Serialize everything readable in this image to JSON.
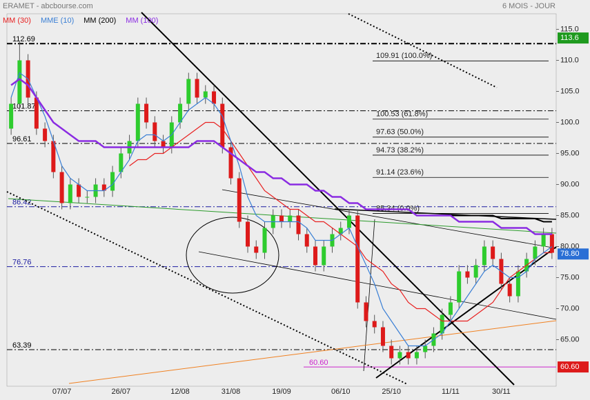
{
  "chart_data": {
    "type": "candlestick",
    "title": "ERAMET - abcbourse.com",
    "subtitle": "6 MOIS - JOUR",
    "categories": [
      null,
      null,
      null,
      null,
      null,
      null,
      "07/07",
      null,
      null,
      null,
      null,
      null,
      null,
      "26/07",
      null,
      null,
      null,
      null,
      null,
      null,
      "12/08",
      null,
      null,
      null,
      null,
      null,
      "31/08",
      null,
      null,
      null,
      null,
      null,
      "19/09",
      null,
      null,
      null,
      null,
      null,
      null,
      "06/10",
      null,
      null,
      null,
      null,
      null,
      "25/10",
      null,
      null,
      null,
      null,
      null,
      null,
      "11/11",
      null,
      null,
      null,
      null,
      null,
      "30/11",
      null,
      null,
      null,
      null,
      null,
      null
    ],
    "open": [
      99,
      103,
      110,
      104,
      99,
      97,
      92,
      87,
      90,
      88,
      88,
      90,
      89,
      92,
      95,
      97,
      103,
      100,
      97,
      96,
      100,
      103,
      107,
      104,
      105,
      103,
      96,
      91,
      84,
      80,
      79,
      83,
      85,
      84,
      85,
      82,
      80,
      77,
      80,
      82,
      83,
      85,
      71,
      68,
      67,
      64,
      62,
      63,
      62,
      63,
      64,
      66,
      69,
      71,
      76,
      75,
      77,
      80,
      78,
      74,
      72,
      76,
      78,
      80,
      82
    ],
    "high": [
      104,
      113,
      111,
      105,
      100,
      98,
      93,
      91,
      91,
      89,
      91,
      91,
      93,
      96,
      98,
      104,
      104,
      101,
      98,
      101,
      104,
      108,
      108,
      106,
      106,
      104,
      97,
      92,
      85,
      81,
      84,
      86,
      86,
      86,
      86,
      83,
      81,
      81,
      83,
      84,
      86,
      86,
      72,
      69,
      68,
      65,
      64,
      64,
      64,
      65,
      67,
      70,
      72,
      77,
      77,
      78,
      81,
      81,
      79,
      75,
      77,
      79,
      81,
      83,
      83
    ],
    "low": [
      98,
      102,
      103,
      98,
      96,
      91,
      86,
      86,
      87,
      87,
      87,
      88,
      88,
      91,
      94,
      96,
      99,
      96,
      95,
      95,
      99,
      102,
      103,
      103,
      102,
      95,
      90,
      83,
      79,
      78,
      78,
      82,
      83,
      83,
      81,
      79,
      76,
      76,
      79,
      81,
      82,
      70,
      67,
      66,
      63,
      61,
      61,
      61,
      61,
      62,
      63,
      65,
      68,
      70,
      74,
      74,
      76,
      77,
      73,
      71,
      71,
      75,
      77,
      79,
      78
    ],
    "close": [
      103,
      110,
      104,
      99,
      97,
      92,
      87,
      90,
      88,
      88,
      90,
      89,
      92,
      95,
      97,
      103,
      100,
      97,
      96,
      100,
      103,
      107,
      104,
      105,
      103,
      96,
      91,
      84,
      80,
      79,
      83,
      85,
      84,
      85,
      82,
      80,
      77,
      80,
      82,
      83,
      85,
      71,
      68,
      67,
      64,
      62,
      63,
      62,
      63,
      64,
      66,
      69,
      71,
      76,
      75,
      77,
      80,
      78,
      74,
      72,
      76,
      78,
      80,
      82,
      79
    ],
    "up_color": "#2ecc2e",
    "down_color": "#dd1a1a",
    "series": [
      {
        "name": "MM (30)",
        "color": "#e82020",
        "values": [
          null,
          null,
          null,
          null,
          null,
          null,
          null,
          null,
          null,
          null,
          null,
          null,
          null,
          null,
          93,
          94,
          94,
          95,
          95,
          96,
          97,
          98,
          99,
          100,
          100,
          99,
          97,
          95,
          93,
          91,
          89,
          88,
          87,
          86,
          86,
          85,
          84,
          84,
          83,
          82,
          81,
          80,
          78,
          77,
          76,
          74,
          73,
          71,
          70,
          70,
          69,
          68,
          68,
          68,
          68,
          69,
          70,
          71,
          73,
          75,
          76,
          77,
          78,
          79,
          79
        ]
      },
      {
        "name": "MME (10)",
        "color": "#3a7fd5",
        "values": [
          104,
          108,
          107,
          104,
          101,
          97,
          93,
          91,
          90,
          89,
          89,
          89,
          90,
          92,
          94,
          97,
          98,
          98,
          97,
          98,
          100,
          102,
          103,
          104,
          103,
          101,
          97,
          93,
          88,
          85,
          84,
          84,
          84,
          84,
          84,
          83,
          81,
          81,
          81,
          82,
          83,
          80,
          77,
          74,
          70,
          68,
          66,
          64,
          64,
          64,
          65,
          66,
          68,
          70,
          72,
          74,
          76,
          77,
          76,
          75,
          75,
          76,
          78,
          79,
          80
        ]
      },
      {
        "name": "MM (200)",
        "color": "#000000",
        "values": [
          null,
          null,
          null,
          null,
          null,
          null,
          null,
          null,
          null,
          null,
          null,
          null,
          null,
          null,
          null,
          null,
          null,
          null,
          null,
          null,
          null,
          null,
          null,
          null,
          null,
          null,
          null,
          null,
          null,
          null,
          null,
          null,
          null,
          null,
          null,
          null,
          null,
          null,
          null,
          null,
          null,
          null,
          null,
          null,
          null,
          null,
          null,
          null,
          null,
          null,
          85,
          85,
          85,
          85,
          85,
          85,
          85,
          85,
          84.5,
          84.5,
          84.5,
          84.5,
          84.5,
          84,
          84
        ]
      },
      {
        "name": "MM (100)",
        "color": "#8a2be2",
        "values": [
          106,
          107,
          106,
          104,
          102,
          100,
          99,
          98,
          97,
          97,
          97,
          96,
          96,
          96,
          96,
          96,
          96,
          96,
          96,
          96,
          96,
          96,
          97,
          97,
          97,
          96,
          95,
          94,
          93,
          92,
          92,
          91,
          91,
          90,
          90,
          90,
          89,
          89,
          88,
          88,
          87,
          87,
          86,
          86,
          86,
          86,
          86,
          86,
          85,
          85,
          85,
          85,
          85,
          84,
          84,
          84,
          84,
          84,
          83,
          83,
          83,
          83,
          82,
          82,
          82
        ]
      }
    ],
    "ylim": [
      57.5,
      117.5
    ],
    "yticks": [
      {
        "value": 65,
        "label": "65.00"
      },
      {
        "value": 70,
        "label": "70.00"
      },
      {
        "value": 75,
        "label": "75.00"
      },
      {
        "value": 80,
        "label": "80.00"
      },
      {
        "value": 85,
        "label": "85.00"
      },
      {
        "value": 90,
        "label": "90.00"
      },
      {
        "value": 95,
        "label": "95.00"
      },
      {
        "value": 100,
        "label": "100.0"
      },
      {
        "value": 105,
        "label": "105.0"
      },
      {
        "value": 110,
        "label": "110.0"
      },
      {
        "value": 115,
        "label": "115.0"
      }
    ],
    "levels": [
      {
        "value": 112.69,
        "label": "112.69",
        "color": "#000000"
      },
      {
        "value": 101.87,
        "label": "101.87",
        "color": "#000000"
      },
      {
        "value": 96.61,
        "label": "96.61",
        "color": "#000000"
      },
      {
        "value": 86.42,
        "label": "86.42",
        "color": "#1a1aa0"
      },
      {
        "value": 76.76,
        "label": "76.76",
        "color": "#1a1aa0"
      },
      {
        "value": 63.39,
        "label": "63.39",
        "color": "#000000"
      },
      {
        "value": 60.6,
        "label": "60.60",
        "color": "#cc22cc"
      }
    ],
    "fibonacci": [
      {
        "value": 109.91,
        "label": "109.91  (100.0%)"
      },
      {
        "value": 100.53,
        "label": "100.53  (61.8%)"
      },
      {
        "value": 97.63,
        "label": "97.63  (50.0%)"
      },
      {
        "value": 94.73,
        "label": "94.73  (38.2%)"
      },
      {
        "value": 91.14,
        "label": "91.14  (23.6%)"
      },
      {
        "value": 85.34,
        "label": "85.34  (0.0%)"
      }
    ],
    "price_tags": [
      {
        "value": 113.6,
        "label": "113.6",
        "color": "#1e9a1e"
      },
      {
        "value": 78.8,
        "label": "78.80",
        "color": "#2a6fd5"
      },
      {
        "value": 60.6,
        "label": "60.60",
        "color": "#dd1a1a"
      }
    ]
  }
}
